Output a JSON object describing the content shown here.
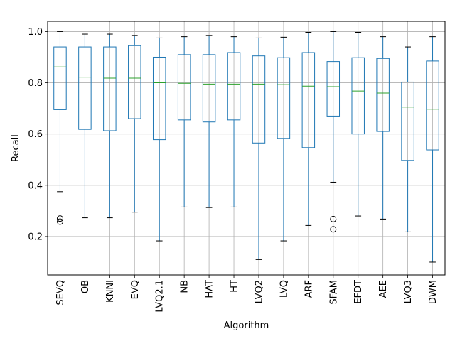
{
  "chart_data": {
    "type": "box",
    "xlabel": "Algorithm",
    "ylabel": "Recall",
    "ylim": [
      0.05,
      1.04
    ],
    "yticks": [
      0.2,
      0.4,
      0.6,
      0.8,
      1.0
    ],
    "ytick_labels": [
      "0.2",
      "0.4",
      "0.6",
      "0.8",
      "1.0"
    ],
    "grid": true,
    "colors": {
      "box": "#1f77b4",
      "median": "#2ca02c",
      "grid": "#b0b0b0",
      "cap": "#000000",
      "outlier": "#000000"
    },
    "categories": [
      "SEVQ",
      "OB",
      "KNNI",
      "EVQ",
      "LVQ2.1",
      "NB",
      "HAT",
      "HT",
      "LVQ2",
      "LVQ",
      "ARF",
      "SFAM",
      "EFDT",
      "AEE",
      "LVQ3",
      "DWM"
    ],
    "boxes": [
      {
        "whislo": 0.375,
        "q1": 0.695,
        "med": 0.862,
        "q3": 0.94,
        "whishi": 1.0,
        "fliers": [
          0.258,
          0.27
        ]
      },
      {
        "whislo": 0.273,
        "q1": 0.618,
        "med": 0.822,
        "q3": 0.94,
        "whishi": 0.99,
        "fliers": []
      },
      {
        "whislo": 0.273,
        "q1": 0.613,
        "med": 0.818,
        "q3": 0.94,
        "whishi": 0.99,
        "fliers": []
      },
      {
        "whislo": 0.295,
        "q1": 0.66,
        "med": 0.818,
        "q3": 0.945,
        "whishi": 0.985,
        "fliers": []
      },
      {
        "whislo": 0.183,
        "q1": 0.578,
        "med": 0.8,
        "q3": 0.9,
        "whishi": 0.975,
        "fliers": []
      },
      {
        "whislo": 0.315,
        "q1": 0.655,
        "med": 0.798,
        "q3": 0.91,
        "whishi": 0.98,
        "fliers": []
      },
      {
        "whislo": 0.313,
        "q1": 0.647,
        "med": 0.795,
        "q3": 0.91,
        "whishi": 0.985,
        "fliers": []
      },
      {
        "whislo": 0.315,
        "q1": 0.655,
        "med": 0.795,
        "q3": 0.918,
        "whishi": 0.98,
        "fliers": []
      },
      {
        "whislo": 0.11,
        "q1": 0.565,
        "med": 0.795,
        "q3": 0.905,
        "whishi": 0.975,
        "fliers": []
      },
      {
        "whislo": 0.183,
        "q1": 0.583,
        "med": 0.793,
        "q3": 0.898,
        "whishi": 0.978,
        "fliers": []
      },
      {
        "whislo": 0.243,
        "q1": 0.547,
        "med": 0.787,
        "q3": 0.918,
        "whishi": 0.997,
        "fliers": []
      },
      {
        "whislo": 0.412,
        "q1": 0.67,
        "med": 0.785,
        "q3": 0.883,
        "whishi": 1.0,
        "fliers": [
          0.228,
          0.268
        ]
      },
      {
        "whislo": 0.28,
        "q1": 0.6,
        "med": 0.768,
        "q3": 0.898,
        "whishi": 0.997,
        "fliers": []
      },
      {
        "whislo": 0.268,
        "q1": 0.61,
        "med": 0.76,
        "q3": 0.895,
        "whishi": 0.98,
        "fliers": []
      },
      {
        "whislo": 0.218,
        "q1": 0.497,
        "med": 0.705,
        "q3": 0.803,
        "whishi": 0.94,
        "fliers": []
      },
      {
        "whislo": 0.1,
        "q1": 0.538,
        "med": 0.697,
        "q3": 0.885,
        "whishi": 0.98,
        "fliers": []
      }
    ]
  }
}
